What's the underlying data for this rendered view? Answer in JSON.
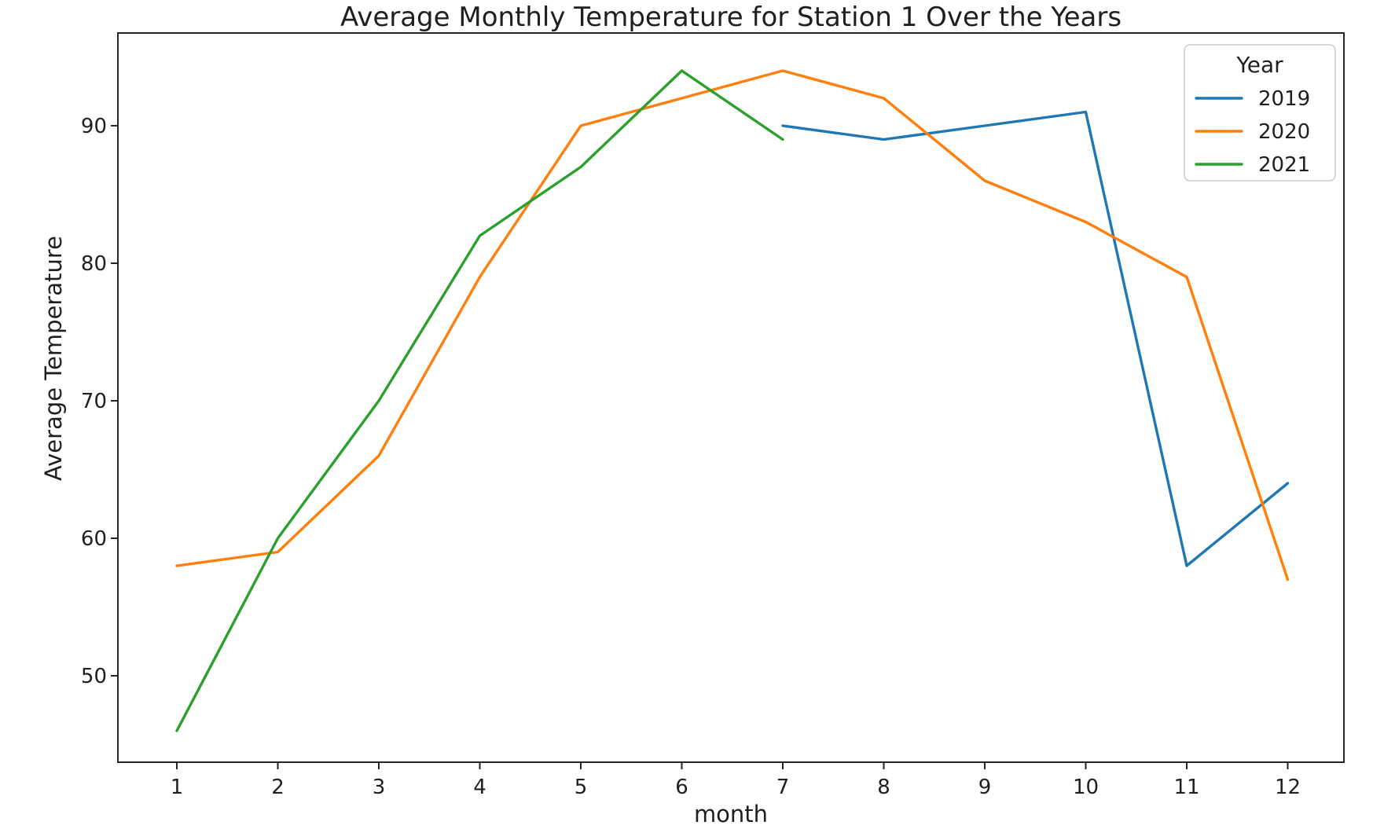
{
  "chart_data": {
    "type": "line",
    "title": "Average Monthly Temperature for Station 1 Over the Years",
    "xlabel": "month",
    "ylabel": "Average Temperature",
    "x_ticks": [
      1,
      2,
      3,
      4,
      5,
      6,
      7,
      8,
      9,
      10,
      11,
      12
    ],
    "y_ticks": [
      50,
      60,
      70,
      80,
      90
    ],
    "xlim": [
      0.42,
      12.56
    ],
    "ylim": [
      43.7,
      96.7
    ],
    "grid": false,
    "legend": {
      "title": "Year",
      "position": "upper right",
      "entries": [
        "2019",
        "2020",
        "2021"
      ]
    },
    "series": [
      {
        "name": "2019",
        "color": "#1f77b4",
        "x": [
          7,
          8,
          9,
          10,
          11,
          12
        ],
        "values": [
          90,
          89,
          90,
          91,
          58,
          64
        ]
      },
      {
        "name": "2020",
        "color": "#ff7f0e",
        "x": [
          1,
          2,
          3,
          4,
          5,
          6,
          7,
          8,
          9,
          10,
          11,
          12
        ],
        "values": [
          58,
          59,
          66,
          79,
          90,
          92,
          94,
          92,
          86,
          83,
          79,
          57
        ]
      },
      {
        "name": "2021",
        "color": "#2ca02c",
        "x": [
          1,
          2,
          3,
          4,
          5,
          6,
          7
        ],
        "values": [
          46,
          60,
          70,
          82,
          87,
          94,
          89
        ]
      }
    ]
  },
  "colors": {
    "background": "#ffffff",
    "axis": "#262626",
    "text": "#1f1f1f",
    "legend_border": "#cccccc",
    "legend_background": "#ffffff"
  }
}
